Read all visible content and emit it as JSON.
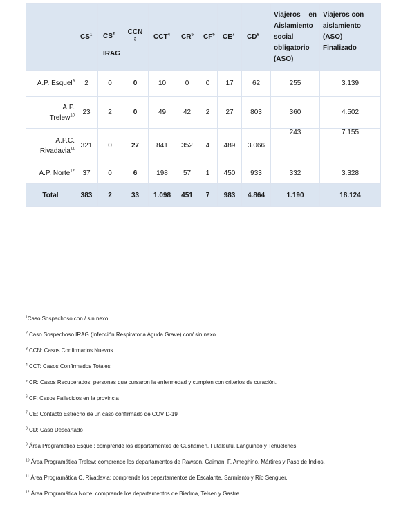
{
  "table": {
    "headers": {
      "cs": "CS",
      "cs_sup": "1",
      "cs2": "CS",
      "cs2_sup": "2",
      "cs2_sub": "IRAG",
      "ccn_a": "CCN",
      "ccn_sup": "3",
      "cct": "CCT",
      "cct_sup": "4",
      "cr": "CR",
      "cr_sup": "5",
      "cf": "CF",
      "cf_sup": "6",
      "ce": "CE",
      "ce_sup": "7",
      "cd": "CD",
      "cd_sup": "8",
      "aso_line1": "Viajeros en",
      "aso_rest": "Aislamiento social obligatorio (ASO)",
      "aso_fin": "Viajeros con aislamiento (ASO) Finalizado"
    },
    "rows": [
      {
        "area_a": "A.P. Esquel",
        "area_b": "",
        "sup": "9",
        "cs": "2",
        "irag": "0",
        "ccn": "0",
        "cct": "10",
        "cr": "0",
        "cf": "0",
        "ce": "17",
        "cd": "62",
        "aso": "255",
        "aso_fin": "3.139"
      },
      {
        "area_a": "A.P.",
        "area_b": "Trelew",
        "sup": "10",
        "cs": "23",
        "irag": "2",
        "ccn": "0",
        "cct": "49",
        "cr": "42",
        "cf": "2",
        "ce": "27",
        "cd": "803",
        "aso": "360",
        "aso_fin": "4.502"
      },
      {
        "area_a": "A.P.C.",
        "area_b": "Rivadavia",
        "sup": "11",
        "cs": "321",
        "irag": "0",
        "ccn": "27",
        "cct": "841",
        "cr": "352",
        "cf": "4",
        "ce": "489",
        "cd": "3.066",
        "aso": "243",
        "aso_fin": "7.155"
      },
      {
        "area_a": "A.P. Norte",
        "area_b": "",
        "sup": "12",
        "cs": "37",
        "irag": "0",
        "ccn": "6",
        "cct": "198",
        "cr": "57",
        "cf": "1",
        "ce": "450",
        "cd": "933",
        "aso": "332",
        "aso_fin": "3.328"
      }
    ],
    "total": {
      "label": "Total",
      "cs": "383",
      "irag": "2",
      "ccn": "33",
      "cct": "1.098",
      "cr": "451",
      "cf": "7",
      "ce": "983",
      "cd": "4.864",
      "aso": "1.190",
      "aso_fin": "18.124"
    }
  },
  "footnotes": [
    {
      "num": "1",
      "text": "Caso Sospechoso con / sin nexo"
    },
    {
      "num": "2",
      "text": " Caso Sospechoso IRAG (Infección Respiratoria Aguda Grave) con/ sin nexo"
    },
    {
      "num": "3",
      "text": " CCN: Casos Confirmados Nuevos."
    },
    {
      "num": "4",
      "text": " CCT: Casos Confirmados Totales"
    },
    {
      "num": "5",
      "text": " CR: Casos Recuperados: personas que cursaron la enfermedad y cumplen con criterios de curación."
    },
    {
      "num": "6",
      "text": " CF: Casos Fallecidos en la provincia"
    },
    {
      "num": "7",
      "text": " CE: Contacto Estrecho de un caso confirmado de COVID-19"
    },
    {
      "num": "8",
      "text": " CD: Caso Descartado"
    },
    {
      "num": "9",
      "text": " Área Programática Esquel: comprende los departamentos de Cushamen, Futaleufú, Languiñeo y Tehuelches"
    },
    {
      "num": "10",
      "text": " Área Programática Trelew: comprende los departamentos de Rawson, Gaiman, F. Ameghino, Mártires y Paso de Indios."
    },
    {
      "num": "11",
      "text": " Área Programática C. Rivadavia: comprende los departamentos de Escalante, Sarmiento y Río Senguer."
    },
    {
      "num": "12",
      "text": " Área Programática Norte: comprende los departamentos de Biedma, Telsen y Gastre."
    }
  ]
}
